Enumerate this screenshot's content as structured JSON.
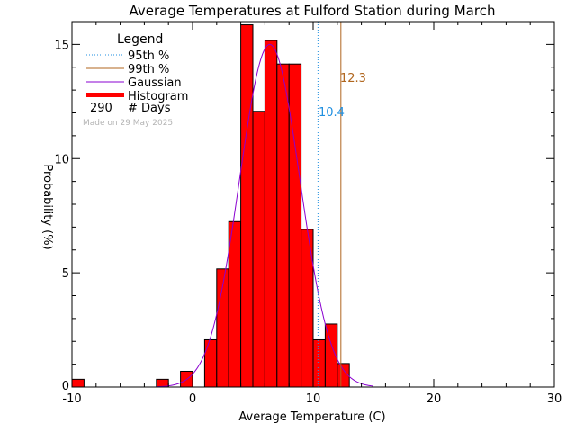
{
  "chart_data": {
    "type": "bar",
    "title": "Average Temperatures at Fulford Station during March",
    "xlabel": "Average Temperature (C)",
    "ylabel": "Probability (%)",
    "xlim": [
      -10,
      30
    ],
    "ylim": [
      0,
      16
    ],
    "x_ticks": [
      -10,
      0,
      10,
      20,
      30
    ],
    "y_ticks": [
      0,
      5,
      10,
      15
    ],
    "grid": false,
    "bin_width": 1,
    "bins": [
      {
        "x0": -10,
        "x1": -9,
        "value": 0.34
      },
      {
        "x0": -3,
        "x1": -2,
        "value": 0.34
      },
      {
        "x0": -1,
        "x1": 0,
        "value": 0.69
      },
      {
        "x0": 1,
        "x1": 2,
        "value": 2.07
      },
      {
        "x0": 2,
        "x1": 3,
        "value": 5.17
      },
      {
        "x0": 3,
        "x1": 4,
        "value": 7.24
      },
      {
        "x0": 4,
        "x1": 5,
        "value": 15.86
      },
      {
        "x0": 5,
        "x1": 6,
        "value": 12.07
      },
      {
        "x0": 6,
        "x1": 7,
        "value": 15.17
      },
      {
        "x0": 7,
        "x1": 8,
        "value": 14.14
      },
      {
        "x0": 8,
        "x1": 9,
        "value": 14.14
      },
      {
        "x0": 9,
        "x1": 10,
        "value": 6.9
      },
      {
        "x0": 10,
        "x1": 11,
        "value": 2.07
      },
      {
        "x0": 11,
        "x1": 12,
        "value": 2.76
      },
      {
        "x0": 12,
        "x1": 13,
        "value": 1.03
      }
    ],
    "gaussian": {
      "mean": 6.4,
      "stddev": 2.5,
      "peak": 15.0,
      "x_range": [
        -3,
        15
      ]
    },
    "percentiles": [
      {
        "name": "95th %",
        "value": 10.4,
        "label": "10.4",
        "color": "#1f8fe0",
        "style": "dotted"
      },
      {
        "name": "99th %",
        "value": 12.3,
        "label": "12.3",
        "color": "#b0661e",
        "style": "solid"
      }
    ],
    "legend": {
      "title": "Legend",
      "placement": "top-left",
      "items": [
        {
          "label": "95th %",
          "kind": "dotted",
          "color": "#1f8fe0"
        },
        {
          "label": "99th %",
          "kind": "line",
          "color": "#b0661e"
        },
        {
          "label": "Gaussian",
          "kind": "line",
          "color": "#8a00d0"
        },
        {
          "label": "Histogram",
          "kind": "bar",
          "color": "#ff0000"
        }
      ],
      "days_count": "290",
      "days_label": "# Days"
    },
    "note": "Made on 29 May 2025",
    "colors": {
      "histogram": "#ff0000",
      "gaussian": "#8a00d0",
      "p95": "#1f8fe0",
      "p99": "#b0661e",
      "note": "#b4b4b4"
    }
  }
}
